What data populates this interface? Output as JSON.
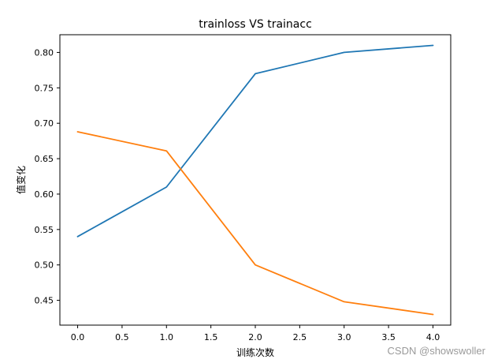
{
  "chart_data": {
    "type": "line",
    "title": "trainloss VS trainacc",
    "xlabel": "训练次数",
    "ylabel": "值变化",
    "x": [
      0,
      1,
      2,
      3,
      4
    ],
    "xlim": [
      -0.2,
      4.2
    ],
    "ylim": [
      0.415,
      0.825
    ],
    "xticks": [
      "0.0",
      "0.5",
      "1.0",
      "1.5",
      "2.0",
      "2.5",
      "3.0",
      "3.5",
      "4.0"
    ],
    "yticks": [
      "0.45",
      "0.50",
      "0.55",
      "0.60",
      "0.65",
      "0.70",
      "0.75",
      "0.80"
    ],
    "grid": false,
    "series": [
      {
        "values": [
          0.54,
          0.61,
          0.77,
          0.8,
          0.81
        ],
        "color": "#1f77b4"
      },
      {
        "values": [
          0.688,
          0.661,
          0.5,
          0.448,
          0.43
        ],
        "color": "#ff7f0e"
      }
    ]
  },
  "watermark": "CSDN @showswoller"
}
